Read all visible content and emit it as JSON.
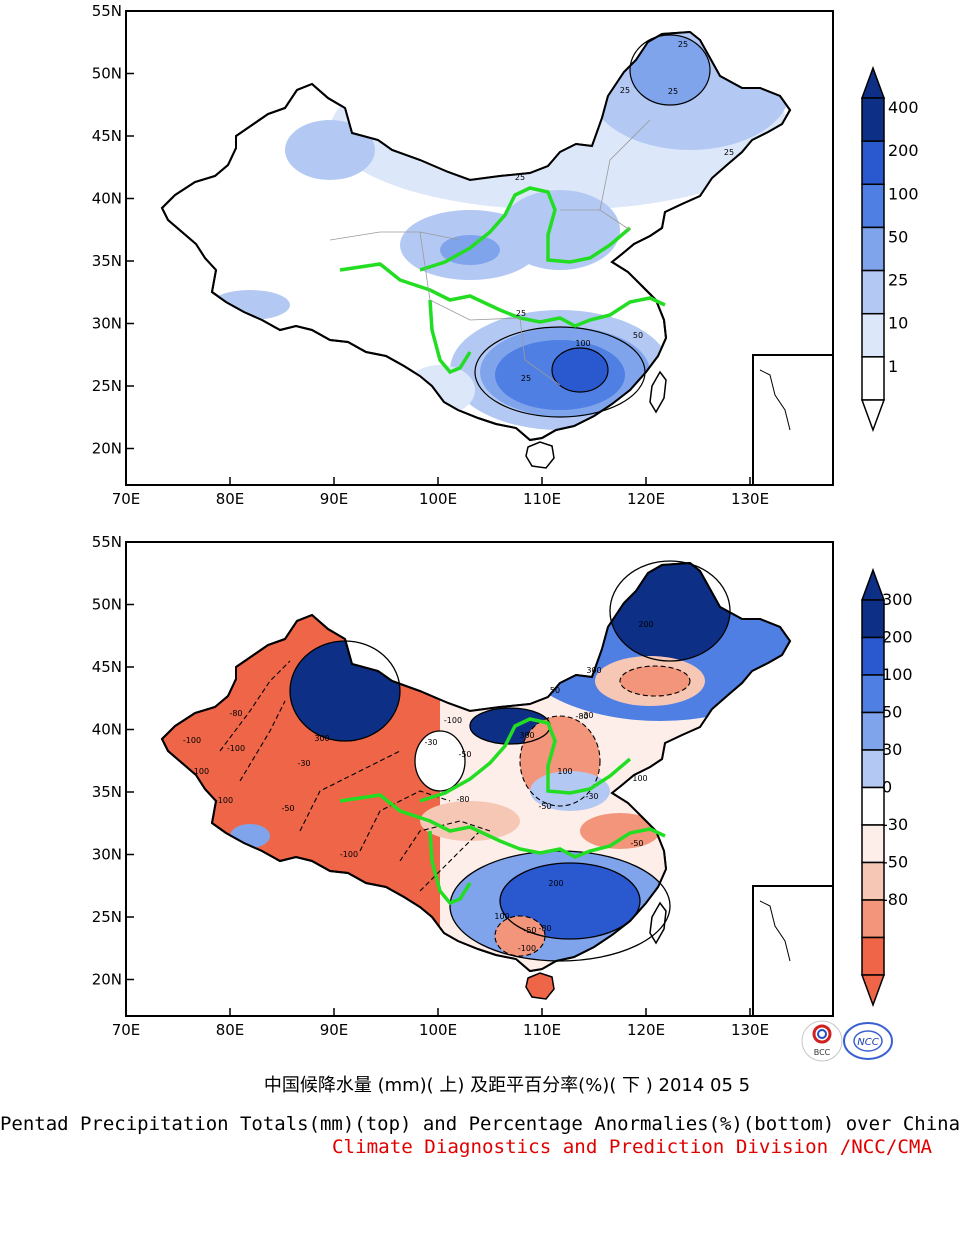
{
  "colors": {
    "precip_scale": [
      "#ffffff",
      "#dde7fa",
      "#b3c9f3",
      "#7fa4ec",
      "#4f7fe3",
      "#2a59cf",
      "#0d2f86"
    ],
    "anomaly_scale": [
      "#ee6647",
      "#f2957a",
      "#f7c7b6",
      "#fdeee9",
      "#ffffff",
      "#b3c9f3",
      "#7fa4ec",
      "#4f7fe3",
      "#2a59cf",
      "#0d2f86"
    ],
    "river_green": "#22dd22",
    "caption_red": "#e00000"
  },
  "top_map": {
    "lat_ticks": [
      "55N",
      "50N",
      "45N",
      "40N",
      "35N",
      "30N",
      "25N",
      "20N"
    ],
    "lon_ticks": [
      "70E",
      "80E",
      "90E",
      "100E",
      "110E",
      "120E",
      "130E"
    ],
    "colorbar_labels": [
      "400",
      "200",
      "100",
      "50",
      "25",
      "10",
      "1"
    ],
    "contour_labels": [
      "25",
      "25",
      "25",
      "25",
      "25",
      "25",
      "50",
      "100",
      "25"
    ]
  },
  "bottom_map": {
    "lat_ticks": [
      "55N",
      "50N",
      "45N",
      "40N",
      "35N",
      "30N",
      "25N",
      "20N"
    ],
    "lon_ticks": [
      "70E",
      "80E",
      "90E",
      "100E",
      "110E",
      "120E",
      "130E"
    ],
    "colorbar_labels": [
      "300",
      "200",
      "100",
      "50",
      "30",
      "0",
      "-30",
      "-50",
      "-80"
    ],
    "contour_labels": [
      "-100",
      "-100",
      "-100",
      "-100",
      "-80",
      "-50",
      "-30",
      "300",
      "-30",
      "-100",
      "-50",
      "-80",
      "300",
      "100",
      "-80",
      "50",
      "300",
      "200",
      "-30",
      "-50",
      "100",
      "200",
      "-80",
      "-100",
      "-50",
      "-30",
      "100",
      "-100",
      "-50"
    ]
  },
  "logos": {
    "bcc": "BCC",
    "ncc": "NCC"
  },
  "caption": {
    "chinese": "中国候降水量 (mm)( 上) 及距平百分率(%)( 下 ) 2014 05 5",
    "english": "Pentad Precipitation Totals(mm)(top) and Percentage Anormalies(%)(bottom) over China",
    "credit": "Climate Diagnostics and Prediction Division /NCC/CMA"
  }
}
